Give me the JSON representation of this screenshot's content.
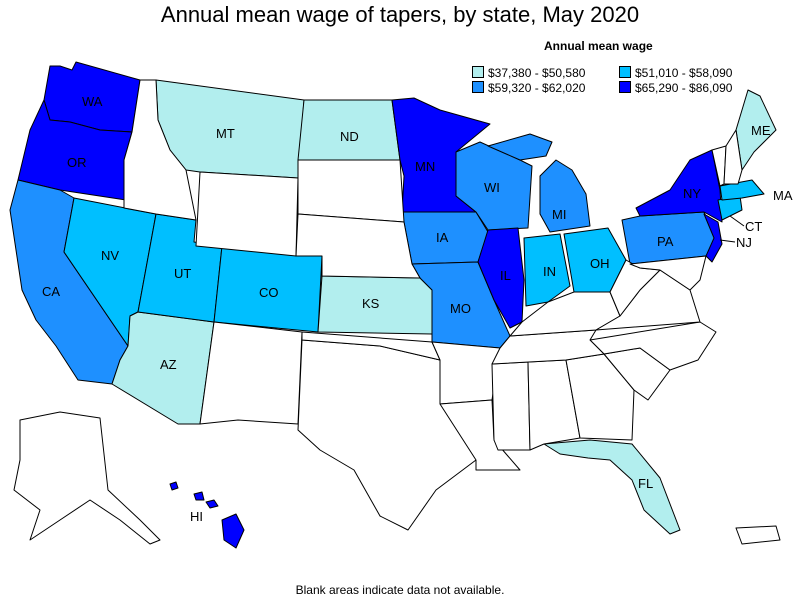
{
  "title": "Annual mean wage of tapers, by state, May 2020",
  "legend": {
    "title": "Annual mean wage",
    "items": [
      {
        "label": "$37,380 - $50,580",
        "color": "#b2eeee"
      },
      {
        "label": "$51,010 - $58,090",
        "color": "#00bfff"
      },
      {
        "label": "$59,320 - $62,020",
        "color": "#1e90ff"
      },
      {
        "label": "$65,290 - $86,090",
        "color": "#0000ff"
      }
    ]
  },
  "no_data_color": "#ffffff",
  "footnote": "Blank areas indicate data not available.",
  "states": [
    {
      "abbr": "WA",
      "wage_range": "$65,290 - $86,090"
    },
    {
      "abbr": "OR",
      "wage_range": "$65,290 - $86,090"
    },
    {
      "abbr": "CA",
      "wage_range": "$59,320 - $62,020"
    },
    {
      "abbr": "NV",
      "wage_range": "$51,010 - $58,090"
    },
    {
      "abbr": "AZ",
      "wage_range": "$37,380 - $50,580"
    },
    {
      "abbr": "UT",
      "wage_range": "$51,010 - $58,090"
    },
    {
      "abbr": "CO",
      "wage_range": "$51,010 - $58,090"
    },
    {
      "abbr": "MT",
      "wage_range": "$37,380 - $50,580"
    },
    {
      "abbr": "ND",
      "wage_range": "$37,380 - $50,580"
    },
    {
      "abbr": "KS",
      "wage_range": "$37,380 - $50,580"
    },
    {
      "abbr": "MN",
      "wage_range": "$65,290 - $86,090"
    },
    {
      "abbr": "IA",
      "wage_range": "$59,320 - $62,020"
    },
    {
      "abbr": "MO",
      "wage_range": "$59,320 - $62,020"
    },
    {
      "abbr": "WI",
      "wage_range": "$59,320 - $62,020"
    },
    {
      "abbr": "IL",
      "wage_range": "$65,290 - $86,090"
    },
    {
      "abbr": "MI",
      "wage_range": "$59,320 - $62,020"
    },
    {
      "abbr": "IN",
      "wage_range": "$51,010 - $58,090"
    },
    {
      "abbr": "OH",
      "wage_range": "$51,010 - $58,090"
    },
    {
      "abbr": "PA",
      "wage_range": "$59,320 - $62,020"
    },
    {
      "abbr": "NY",
      "wage_range": "$65,290 - $86,090"
    },
    {
      "abbr": "NJ",
      "wage_range": "$65,290 - $86,090"
    },
    {
      "abbr": "CT",
      "wage_range": "$51,010 - $58,090"
    },
    {
      "abbr": "MA",
      "wage_range": "$51,010 - $58,090"
    },
    {
      "abbr": "ME",
      "wage_range": "$37,380 - $50,580"
    },
    {
      "abbr": "FL",
      "wage_range": "$37,380 - $50,580"
    },
    {
      "abbr": "HI",
      "wage_range": "$65,290 - $86,090"
    }
  ]
}
